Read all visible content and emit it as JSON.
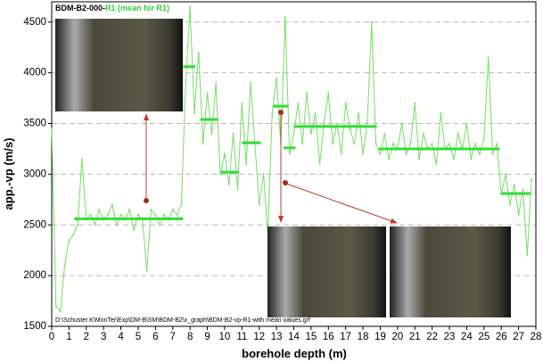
{
  "chart_data": {
    "type": "line",
    "title_parts": [
      "BDM-B2-000-",
      "R1 (mean for R1)"
    ],
    "title_colors": [
      "#000000",
      "#33cc33"
    ],
    "y_label": "app.-vp (m/s)",
    "x_label": "borehole depth (m)",
    "file_path": "D:\\Schuster.K\\MonTer\\Exp\\DM-B\\SM\\BDM-B2\\x_graph\\BDM-B2-vp-R1-with mean values.grf",
    "xlim": [
      0,
      28
    ],
    "ylim": [
      1500,
      4700
    ],
    "xticks": [
      0,
      1,
      2,
      3,
      4,
      5,
      6,
      7,
      8,
      9,
      10,
      11,
      12,
      13,
      14,
      15,
      16,
      17,
      18,
      19,
      20,
      21,
      22,
      23,
      24,
      25,
      26,
      27,
      28
    ],
    "yticks": [
      1500,
      2000,
      2500,
      3000,
      3500,
      4000,
      4500
    ],
    "grid": true,
    "color": "#77dd66",
    "mean_color": "#33dd33",
    "x": [
      0,
      0.25,
      0.5,
      0.75,
      1,
      1.25,
      1.5,
      1.75,
      2,
      2.25,
      2.5,
      2.75,
      3,
      3.25,
      3.5,
      3.75,
      4,
      4.25,
      4.5,
      4.75,
      5,
      5.25,
      5.5,
      5.75,
      6,
      6.25,
      6.5,
      6.75,
      7,
      7.25,
      7.5,
      7.75,
      8,
      8.25,
      8.5,
      8.75,
      9,
      9.25,
      9.5,
      9.75,
      10,
      10.25,
      10.5,
      10.75,
      11,
      11.25,
      11.5,
      11.75,
      12,
      12.25,
      12.5,
      12.75,
      13,
      13.25,
      13.5,
      13.75,
      14,
      14.25,
      14.5,
      14.75,
      15,
      15.25,
      15.5,
      15.75,
      16,
      16.25,
      16.5,
      16.75,
      17,
      17.25,
      17.5,
      17.75,
      18,
      18.25,
      18.5,
      18.75,
      19,
      19.25,
      19.5,
      19.75,
      20,
      20.25,
      20.5,
      20.75,
      21,
      21.25,
      21.5,
      21.75,
      22,
      22.25,
      22.5,
      22.75,
      23,
      23.25,
      23.5,
      23.75,
      24,
      24.25,
      24.5,
      24.75,
      25,
      25.25,
      25.5,
      25.75,
      26,
      26.25,
      26.5,
      26.75,
      27,
      27.25,
      27.5,
      27.75
    ],
    "values": [
      3450,
      1700,
      1650,
      2100,
      2350,
      2400,
      2500,
      3150,
      2550,
      2600,
      2500,
      2650,
      2550,
      2600,
      2700,
      2500,
      2600,
      2550,
      2650,
      2450,
      2600,
      2550,
      2050,
      2650,
      2600,
      2500,
      2600,
      2550,
      2650,
      2600,
      2700,
      3900,
      4650,
      3600,
      4200,
      3300,
      3800,
      3400,
      3900,
      3000,
      3200,
      2900,
      3400,
      2850,
      3700,
      3100,
      3900,
      3300,
      2700,
      3000,
      2400,
      3600,
      3950,
      3300,
      4550,
      3200,
      3400,
      3700,
      3300,
      3800,
      3400,
      3600,
      3100,
      3500,
      3800,
      3300,
      3500,
      3200,
      3700,
      3450,
      3300,
      3600,
      3200,
      3500,
      4500,
      3300,
      3200,
      3400,
      3150,
      3300,
      3250,
      3500,
      3200,
      3300,
      3700,
      3150,
      3400,
      3250,
      3300,
      3100,
      3600,
      3250,
      3300,
      3150,
      3400,
      3250,
      3500,
      3150,
      3300,
      3200,
      3350,
      4150,
      3200,
      3300,
      2800,
      3000,
      2700,
      2900,
      2600,
      2850,
      2200,
      2950
    ],
    "mean_segments": [
      {
        "from": 1.3,
        "to": 7.6,
        "value": 2560
      },
      {
        "from": 7.6,
        "to": 8.3,
        "value": 4060
      },
      {
        "from": 8.6,
        "to": 9.6,
        "value": 3540
      },
      {
        "from": 9.8,
        "to": 10.8,
        "value": 3020
      },
      {
        "from": 11,
        "to": 12.1,
        "value": 3310
      },
      {
        "from": 12.8,
        "to": 13.7,
        "value": 3670
      },
      {
        "from": 13.4,
        "to": 14.1,
        "value": 3260
      },
      {
        "from": 14,
        "to": 18.8,
        "value": 3470
      },
      {
        "from": 18.9,
        "to": 25.9,
        "value": 3250
      },
      {
        "from": 26,
        "to": 27.7,
        "value": 2810
      }
    ]
  }
}
